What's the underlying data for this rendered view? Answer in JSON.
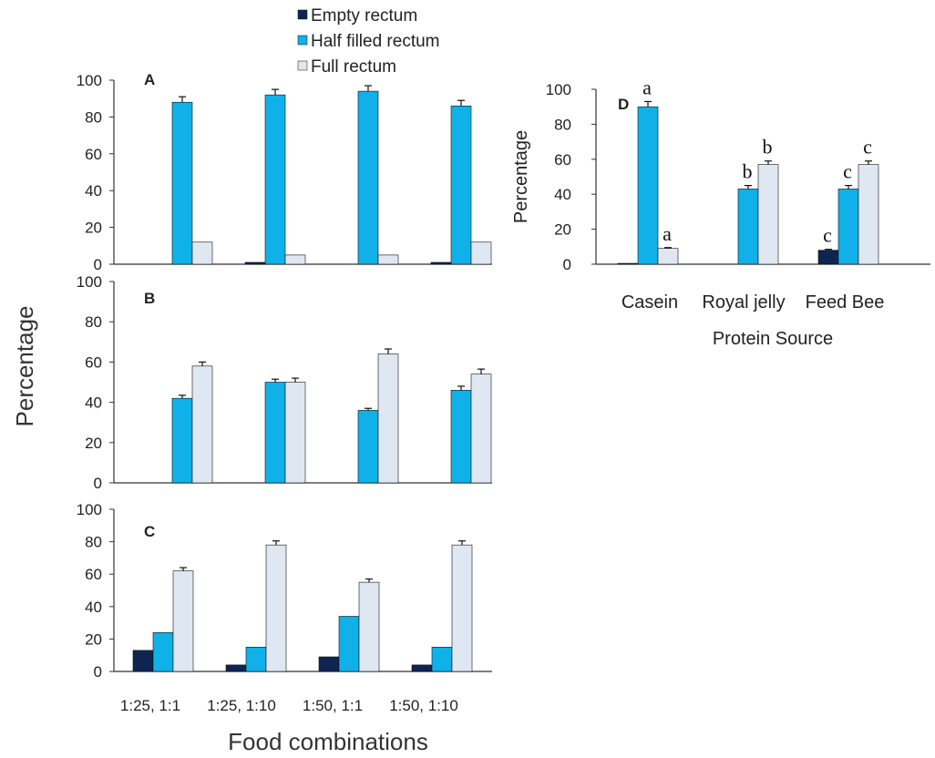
{
  "figure": {
    "colors": {
      "empty": "#0d2550",
      "half": "#0fb1e8",
      "full": "#dfe7f2",
      "edge": "#111111",
      "axis": "#333333"
    },
    "legend": [
      {
        "key": "empty",
        "label": "Empty rectum"
      },
      {
        "key": "half",
        "label": "Half filled rectum"
      },
      {
        "key": "full",
        "label": "Full rectum"
      }
    ],
    "left_ylabel": "Percentage",
    "left_xlabel": "Food combinations"
  },
  "chart_data": [
    {
      "panel": "A",
      "type": "bar",
      "categories": [
        "1:25, 1:1",
        "1:25, 1:10",
        "1:50, 1:1",
        "1:50, 1:10"
      ],
      "ylim": [
        0,
        100
      ],
      "yticks": [
        0,
        20,
        40,
        60,
        80,
        100
      ],
      "series": [
        {
          "name": "Empty rectum",
          "key": "empty",
          "values": [
            0,
            1,
            0,
            1
          ],
          "errors": [
            0,
            0,
            0,
            0
          ]
        },
        {
          "name": "Half filled rectum",
          "key": "half",
          "values": [
            88,
            92,
            94,
            86
          ],
          "errors": [
            3,
            3,
            3,
            3
          ]
        },
        {
          "name": "Full rectum",
          "key": "full",
          "values": [
            12,
            5,
            5,
            12
          ],
          "errors": [
            0,
            0,
            0,
            0
          ]
        }
      ]
    },
    {
      "panel": "B",
      "type": "bar",
      "categories": [
        "1:25, 1:1",
        "1:25, 1:10",
        "1:50, 1:1",
        "1:50, 1:10"
      ],
      "ylim": [
        0,
        100
      ],
      "yticks": [
        0,
        20,
        40,
        60,
        80,
        100
      ],
      "series": [
        {
          "name": "Empty rectum",
          "key": "empty",
          "values": [
            0,
            0,
            0,
            0
          ],
          "errors": [
            0,
            0,
            0,
            0
          ]
        },
        {
          "name": "Half filled rectum",
          "key": "half",
          "values": [
            42,
            50,
            36,
            46
          ],
          "errors": [
            1.5,
            1.5,
            1,
            2
          ]
        },
        {
          "name": "Full rectum",
          "key": "full",
          "values": [
            58,
            50,
            64,
            54
          ],
          "errors": [
            2,
            2,
            2.5,
            2.5
          ]
        }
      ]
    },
    {
      "panel": "C",
      "type": "bar",
      "categories": [
        "1:25, 1:1",
        "1:25, 1:10",
        "1:50, 1:1",
        "1:50, 1:10"
      ],
      "ylim": [
        0,
        100
      ],
      "yticks": [
        0,
        20,
        40,
        60,
        80,
        100
      ],
      "xticklabels": [
        "1:25, 1:1",
        "1:25, 1:10",
        "1:50, 1:1",
        "1:50, 1:10"
      ],
      "series": [
        {
          "name": "Empty rectum",
          "key": "empty",
          "values": [
            13,
            4,
            9,
            4
          ],
          "errors": [
            0,
            0,
            0,
            0
          ]
        },
        {
          "name": "Half filled rectum",
          "key": "half",
          "values": [
            24,
            15,
            34,
            15
          ],
          "errors": [
            0,
            0,
            0,
            0
          ]
        },
        {
          "name": "Full rectum",
          "key": "full",
          "values": [
            62,
            78,
            55,
            78
          ],
          "errors": [
            2,
            2.5,
            2,
            2.5
          ]
        }
      ]
    },
    {
      "panel": "D",
      "type": "bar",
      "categories": [
        "Casein",
        "Royal jelly",
        "Feed Bee"
      ],
      "ylim": [
        0,
        100
      ],
      "yticks": [
        0,
        20,
        40,
        60,
        80,
        100
      ],
      "ylabel": "Percentage",
      "xlabel": "Protein Source",
      "series": [
        {
          "name": "Empty rectum",
          "key": "empty",
          "values": [
            0.5,
            0,
            8
          ],
          "errors": [
            0,
            0,
            0.5
          ],
          "sig": [
            "",
            "",
            "c"
          ]
        },
        {
          "name": "Half filled rectum",
          "key": "half",
          "values": [
            90,
            43,
            43
          ],
          "errors": [
            3,
            2,
            2
          ],
          "sig": [
            "a",
            "b",
            "c"
          ]
        },
        {
          "name": "Full rectum",
          "key": "full",
          "values": [
            9,
            57,
            57
          ],
          "errors": [
            0.5,
            2,
            2
          ],
          "sig": [
            "a",
            "b",
            "c"
          ]
        }
      ]
    }
  ]
}
